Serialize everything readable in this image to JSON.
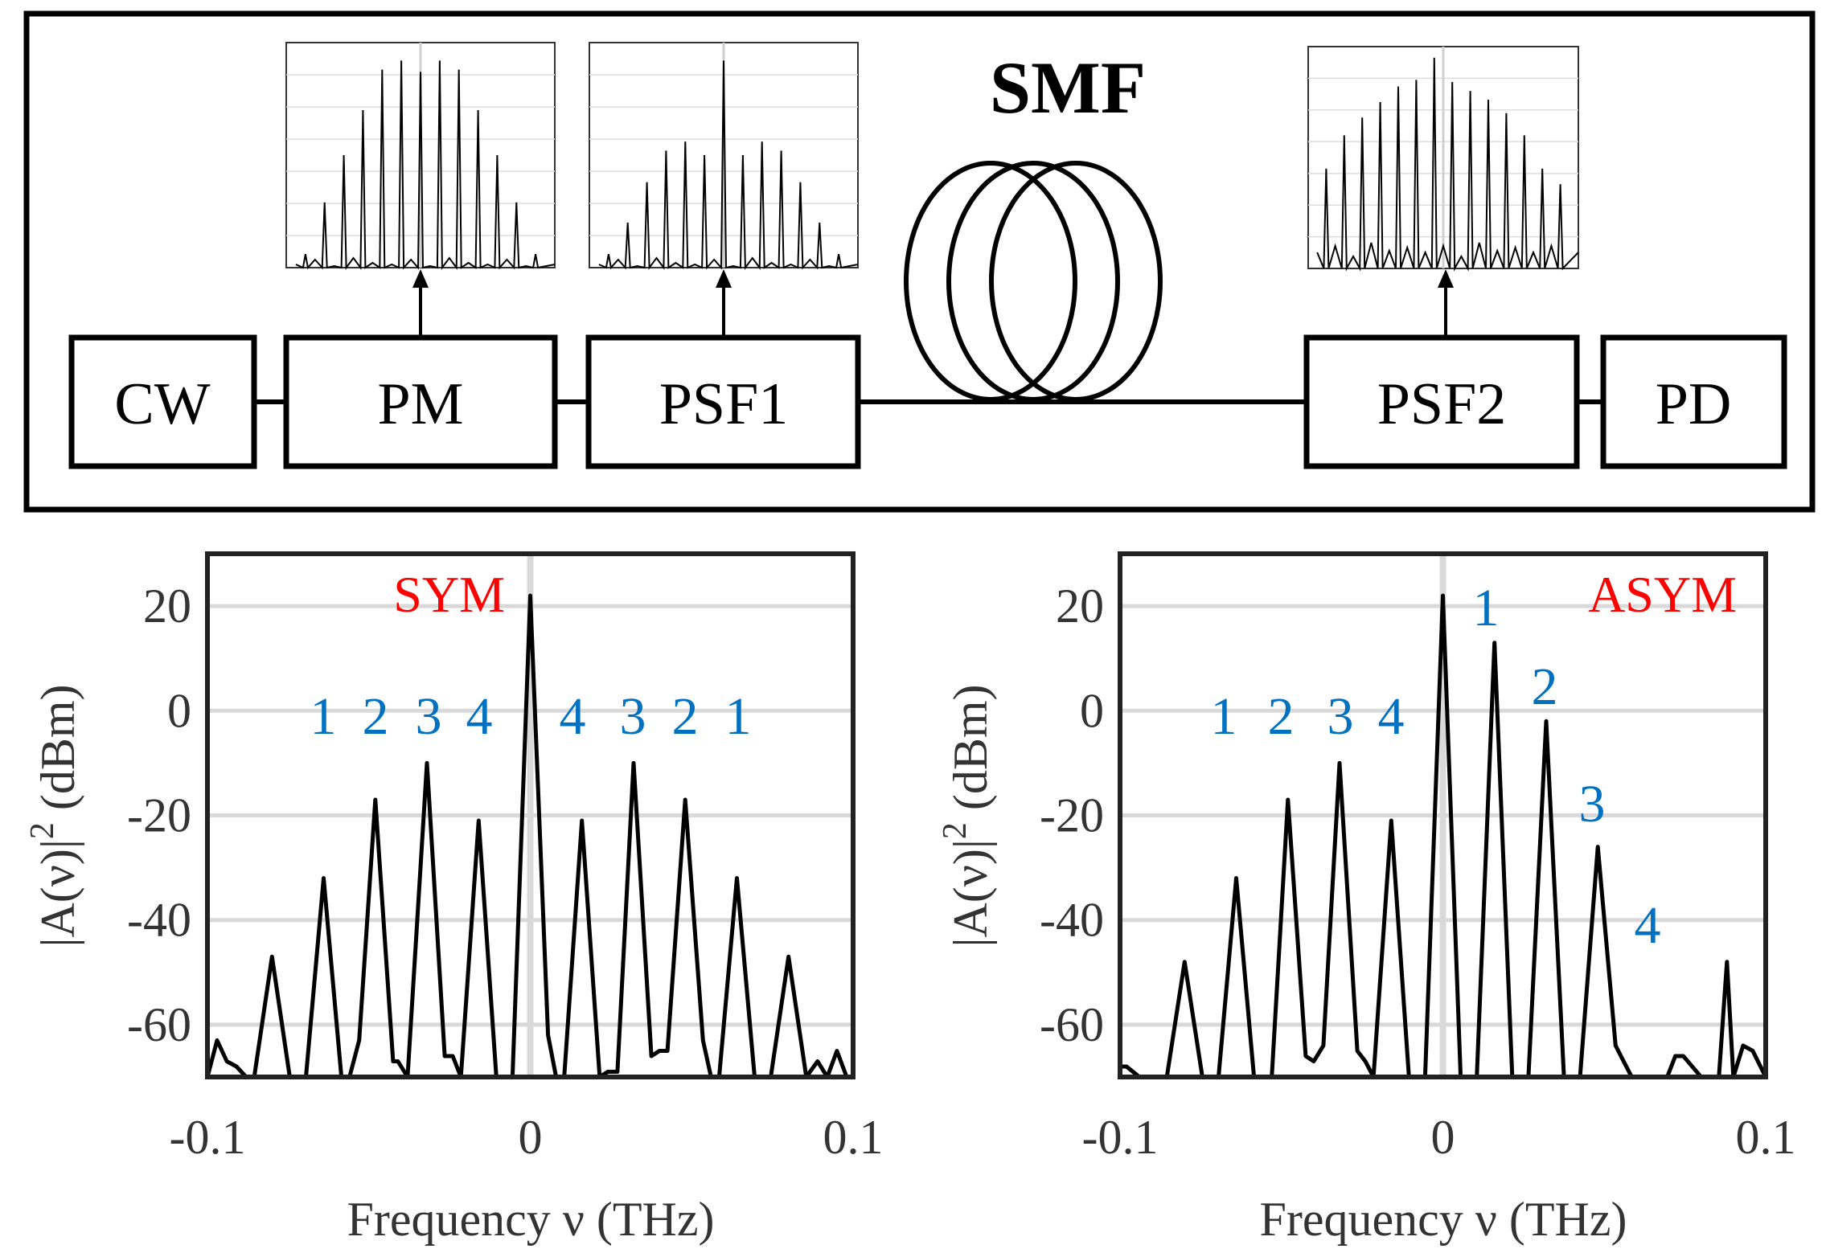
{
  "setup": {
    "blocks": {
      "cw": "CW",
      "pm": "PM",
      "psf1": "PSF1",
      "psf2": "PSF2",
      "pd": "PD"
    },
    "fiber_label": "SMF"
  },
  "chart_data": [
    {
      "type": "line",
      "id": "sym",
      "title": "SYM",
      "title_color": "#ff0000",
      "xlabel": "Frequency ν (THz)",
      "ylabel": "|A(ν)|² (dBm)",
      "ylabel_main": "|A(ν)|",
      "ylabel_sup": "2",
      "ylabel_unit": "(dBm)",
      "xlim": [
        -0.1,
        0.1
      ],
      "ylim": [
        -70,
        30
      ],
      "xticks": [
        "-0.1",
        "0",
        "0.1"
      ],
      "yticks": [
        "20",
        "0",
        "-20",
        "-40",
        "-60"
      ],
      "series": [
        {
          "name": "spectrum",
          "color": "#000000",
          "x": [
            -0.1,
            -0.097,
            -0.094,
            -0.091,
            -0.088,
            -0.0855,
            -0.08,
            -0.0745,
            -0.072,
            -0.0695,
            -0.064,
            -0.0585,
            -0.056,
            -0.053,
            -0.048,
            -0.0425,
            -0.041,
            -0.038,
            -0.032,
            -0.0265,
            -0.024,
            -0.0215,
            -0.016,
            -0.0105,
            -0.008,
            -0.0055,
            0,
            0.0055,
            0.008,
            0.0105,
            0.016,
            0.0215,
            0.024,
            0.027,
            0.032,
            0.0375,
            0.04,
            0.0425,
            0.048,
            0.0535,
            0.056,
            0.0585,
            0.064,
            0.0695,
            0.072,
            0.0745,
            0.08,
            0.0855,
            0.089,
            0.092,
            0.095,
            0.098,
            0.1
          ],
          "y": [
            -70,
            -63,
            -67,
            -68,
            -70,
            -70,
            -47,
            -70,
            -70,
            -70,
            -32,
            -70,
            -70,
            -63,
            -17,
            -67,
            -67,
            -70,
            -10,
            -66,
            -66,
            -70,
            -21,
            -70,
            -70,
            -70,
            22,
            -62,
            -70,
            -70,
            -21,
            -70,
            -69,
            -69,
            -10,
            -66,
            -65,
            -65,
            -17,
            -63,
            -70,
            -70,
            -32,
            -70,
            -70,
            -70,
            -47,
            -70,
            -67,
            -70,
            -65,
            -70,
            -70
          ]
        }
      ],
      "annotations": {
        "left_orders": [
          "1",
          "2",
          "3",
          "4"
        ],
        "right_orders": [
          "4",
          "3",
          "2",
          "1"
        ],
        "color": "#0070c0"
      }
    },
    {
      "type": "line",
      "id": "asym",
      "title": "ASYM",
      "title_color": "#ff0000",
      "xlabel": "Frequency ν (THz)",
      "ylabel": "|A(ν)|² (dBm)",
      "ylabel_main": "|A(ν)|",
      "ylabel_sup": "2",
      "ylabel_unit": "(dBm)",
      "xlim": [
        -0.1,
        0.1
      ],
      "ylim": [
        -70,
        30
      ],
      "xticks": [
        "-0.1",
        "0",
        "0.1"
      ],
      "yticks": [
        "20",
        "0",
        "-20",
        "-40",
        "-60"
      ],
      "series": [
        {
          "name": "spectrum",
          "color": "#000000",
          "x": [
            -0.1,
            -0.098,
            -0.094,
            -0.091,
            -0.088,
            -0.0855,
            -0.08,
            -0.0745,
            -0.07,
            -0.0695,
            -0.064,
            -0.0585,
            -0.056,
            -0.053,
            -0.048,
            -0.0425,
            -0.04,
            -0.037,
            -0.032,
            -0.0265,
            -0.024,
            -0.0215,
            -0.016,
            -0.0105,
            -0.008,
            -0.0055,
            0,
            0.0055,
            0.008,
            0.0105,
            0.016,
            0.0215,
            0.024,
            0.0265,
            0.032,
            0.0375,
            0.04,
            0.0425,
            0.048,
            0.0535,
            0.056,
            0.0585,
            0.064,
            0.0695,
            0.072,
            0.0745,
            0.08,
            0.0855,
            0.088,
            0.09,
            0.093,
            0.096,
            0.1
          ],
          "y": [
            -68,
            -68,
            -70,
            -70,
            -70,
            -70,
            -48,
            -70,
            -70,
            -70,
            -32,
            -70,
            -70,
            -70,
            -17,
            -66,
            -67,
            -64,
            -10,
            -65,
            -67,
            -70,
            -21,
            -70,
            -70,
            -70,
            22,
            -70,
            -70,
            -70,
            13,
            -70,
            -70,
            -70,
            -2,
            -70,
            -70,
            -70,
            -26,
            -64,
            -67,
            -70,
            -70,
            -70,
            -66,
            -66,
            -70,
            -70,
            -48,
            -70,
            -64,
            -65,
            -70
          ]
        }
      ],
      "annotations": {
        "left_orders": [
          "1",
          "2",
          "3",
          "4"
        ],
        "right_orders": [
          "1",
          "2",
          "3",
          "4"
        ],
        "color": "#0070c0"
      }
    }
  ]
}
